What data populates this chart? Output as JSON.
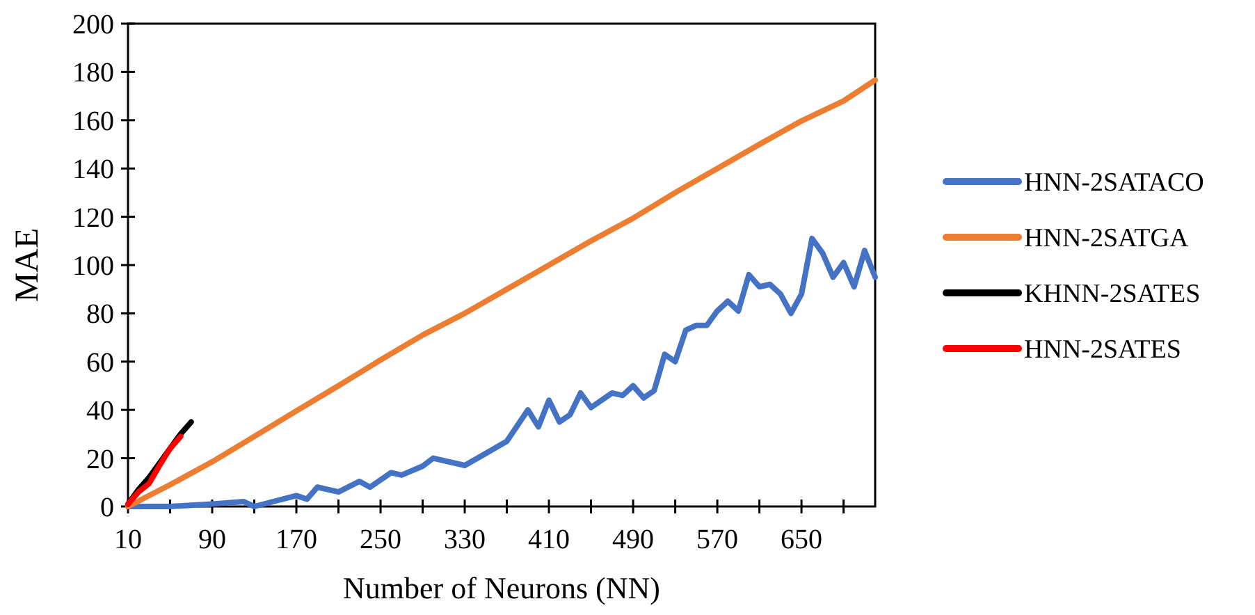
{
  "chart_data": {
    "type": "line",
    "xlabel": "Number of Neurons (NN)",
    "ylabel": "MAE",
    "xlim": [
      10,
      720
    ],
    "ylim": [
      0,
      200
    ],
    "xticks": [
      10,
      {
        "value": 50,
        "label": null
      },
      90,
      {
        "value": 130,
        "label": null
      },
      170,
      {
        "value": 210,
        "label": null
      },
      250,
      {
        "value": 290,
        "label": null
      },
      330,
      {
        "value": 370,
        "label": null
      },
      410,
      {
        "value": 450,
        "label": null
      },
      490,
      {
        "value": 530,
        "label": null
      },
      570,
      {
        "value": 610,
        "label": null
      },
      650,
      {
        "value": 690,
        "label": null
      }
    ],
    "yticks": [
      0,
      20,
      40,
      60,
      80,
      100,
      120,
      140,
      160,
      180,
      200
    ],
    "grid": false,
    "legend": "right",
    "line_style": "solid",
    "marker": "none",
    "series": [
      {
        "name": "HNN-2SATACO",
        "color": "#4472c4",
        "x": [
          10,
          50,
          90,
          120,
          130,
          170,
          180,
          190,
          210,
          230,
          240,
          260,
          270,
          290,
          300,
          330,
          350,
          370,
          390,
          400,
          410,
          420,
          430,
          440,
          450,
          470,
          480,
          490,
          500,
          510,
          520,
          530,
          540,
          550,
          560,
          570,
          580,
          590,
          600,
          610,
          620,
          630,
          640,
          650,
          660,
          670,
          680,
          690,
          700,
          710,
          720
        ],
        "values": [
          0,
          0,
          1,
          2,
          0,
          4.5,
          3,
          8,
          6,
          10.4,
          8,
          14,
          13,
          16.7,
          20,
          17,
          22,
          27,
          40,
          33,
          44,
          35,
          38,
          47,
          41,
          47,
          46,
          50,
          45,
          48,
          63,
          60,
          73,
          75,
          75,
          81,
          85,
          81,
          96,
          91,
          92,
          88,
          80,
          88,
          111,
          105,
          95,
          101,
          91,
          106,
          95
        ]
      },
      {
        "name": "HNN-2SATGA",
        "color": "#ed7d31",
        "x": [
          10,
          50,
          90,
          130,
          170,
          210,
          250,
          290,
          330,
          370,
          410,
          450,
          490,
          530,
          570,
          610,
          650,
          690,
          720
        ],
        "values": [
          0,
          9,
          18.5,
          29,
          39.6,
          50,
          60.7,
          71,
          80,
          90,
          100,
          110,
          119.4,
          130,
          140,
          150,
          159.7,
          168,
          176.6
        ]
      },
      {
        "name": "KHNN-2SATES",
        "color": "#000000",
        "x": [
          10,
          20,
          30,
          40,
          50,
          60,
          70
        ],
        "values": [
          1,
          7,
          12,
          18,
          24,
          30,
          35
        ]
      },
      {
        "name": "HNN-2SATES",
        "color": "#ff0000",
        "x": [
          10,
          20,
          30,
          40,
          50,
          60
        ],
        "values": [
          1,
          6,
          9.5,
          17,
          24,
          29
        ]
      }
    ]
  }
}
